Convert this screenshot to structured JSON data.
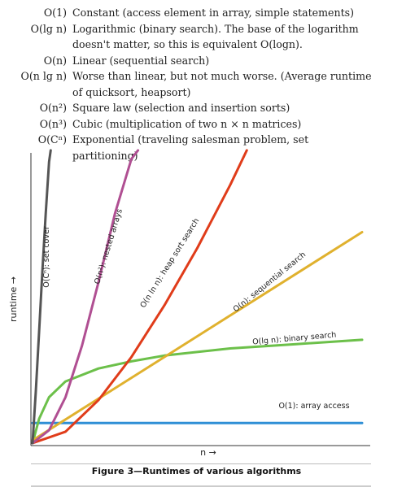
{
  "complexity_table": [
    {
      "notation": "O(1)",
      "description": "Constant (access element in array, simple statements)"
    },
    {
      "notation": "O(lg n)",
      "description": "Logarithmic (binary search). The base of the logarithm doesn't matter, so this is equivalent O(logn)."
    },
    {
      "notation": "O(n)",
      "description": "Linear (sequential search)"
    },
    {
      "notation": "O(n lg n)",
      "description": "Worse than linear, but not much worse. (Average runtime of quicksort, heapsort)"
    },
    {
      "notation": "O(n²)",
      "description": "Square law (selection and insertion sorts)"
    },
    {
      "notation": "O(n³)",
      "description": "Cubic (multiplication of two n × n matrices)"
    },
    {
      "notation": "O(Cⁿ)",
      "description": "Exponential (traveling salesman problem, set partitioning)"
    }
  ],
  "chart_data": {
    "type": "line",
    "title": "",
    "xlabel": "n →",
    "ylabel": "runtime →",
    "xlim": [
      0,
      10
    ],
    "ylim": [
      0,
      10
    ],
    "grid": false,
    "legend": "none",
    "series": [
      {
        "name": "O(1): array access",
        "color": "#2f8fd6",
        "x": [
          0,
          10
        ],
        "y": [
          0.7,
          0.7
        ]
      },
      {
        "name": "O(lg n): binary search",
        "color": "#6cc04a",
        "x": [
          0,
          0.2,
          0.5,
          1,
          2,
          3,
          4,
          6,
          8,
          10
        ],
        "y": [
          0,
          0.85,
          1.6,
          2.15,
          2.6,
          2.85,
          3.05,
          3.3,
          3.45,
          3.6
        ]
      },
      {
        "name": "O(n): sequential search",
        "color": "#e0b12e",
        "x": [
          0,
          10
        ],
        "y": [
          0.1,
          7.35
        ]
      },
      {
        "name": "O(n ln n): heap sort search",
        "color": "#e03c1a",
        "x": [
          0,
          1,
          2,
          3,
          4,
          5,
          6,
          6.5
        ],
        "y": [
          0,
          0.4,
          1.5,
          3.0,
          4.8,
          6.8,
          9.0,
          10.2
        ]
      },
      {
        "name": "O(n²): nested arrays",
        "color": "#b04f92",
        "x": [
          0,
          0.5,
          1,
          1.5,
          2,
          2.5,
          3,
          3.2
        ],
        "y": [
          0,
          0.45,
          1.6,
          3.4,
          5.6,
          8.0,
          9.9,
          10.2
        ]
      },
      {
        "name": "O(Cⁿ): set cover",
        "color": "#555555",
        "x": [
          0,
          0.1,
          0.2,
          0.3,
          0.4,
          0.5,
          0.55
        ],
        "y": [
          0,
          1.8,
          3.9,
          6.0,
          8.0,
          9.8,
          10.2
        ]
      }
    ]
  },
  "caption": "Figure 3—Runtimes of various algorithms"
}
